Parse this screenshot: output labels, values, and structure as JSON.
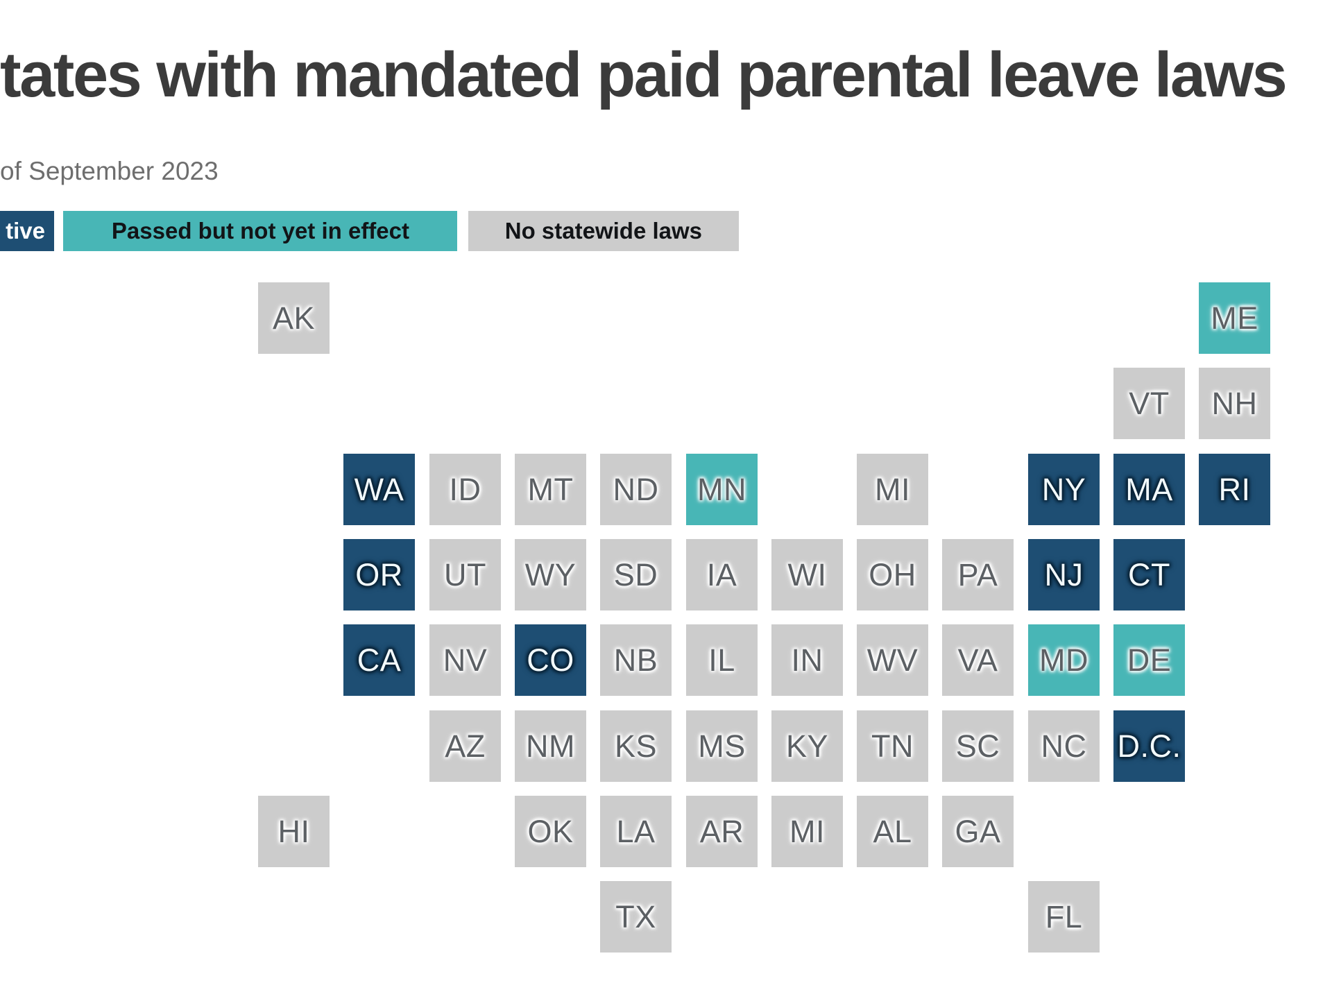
{
  "header": {
    "title": "tates with mandated paid parental leave laws",
    "subtitle": "of September 2023"
  },
  "colors": {
    "background": "#ffffff",
    "title_text": "#3b3b3b",
    "subtitle_text": "#6e6e6e",
    "legend_text_dark": "#121417",
    "legend_text_light": "#ffffff",
    "tile_text_dark": "#5c6064",
    "tile_text_light": "#f2fafd"
  },
  "chart_data": {
    "type": "heatmap",
    "subtype": "us-state-tile-grid-cartogram",
    "title": "tates with mandated paid parental leave laws",
    "subtitle": "of September 2023",
    "legend": [
      {
        "label": "tive",
        "status": "active",
        "color": "#1e4e73"
      },
      {
        "label": "Passed but not yet in effect",
        "status": "passed",
        "color": "#48b6b6"
      },
      {
        "label": "No statewide laws",
        "status": "none",
        "color": "#cccccc"
      }
    ],
    "states": [
      {
        "abbr": "AK",
        "row": 0,
        "col": 0,
        "status": "none"
      },
      {
        "abbr": "ME",
        "row": 0,
        "col": 11,
        "status": "passed"
      },
      {
        "abbr": "VT",
        "row": 1,
        "col": 10,
        "status": "none"
      },
      {
        "abbr": "NH",
        "row": 1,
        "col": 11,
        "status": "none"
      },
      {
        "abbr": "WA",
        "row": 2,
        "col": 1,
        "status": "active"
      },
      {
        "abbr": "ID",
        "row": 2,
        "col": 2,
        "status": "none"
      },
      {
        "abbr": "MT",
        "row": 2,
        "col": 3,
        "status": "none"
      },
      {
        "abbr": "ND",
        "row": 2,
        "col": 4,
        "status": "none"
      },
      {
        "abbr": "MN",
        "row": 2,
        "col": 5,
        "status": "passed"
      },
      {
        "abbr": "MI",
        "row": 2,
        "col": 7,
        "status": "none"
      },
      {
        "abbr": "NY",
        "row": 2,
        "col": 9,
        "status": "active"
      },
      {
        "abbr": "MA",
        "row": 2,
        "col": 10,
        "status": "active"
      },
      {
        "abbr": "RI",
        "row": 2,
        "col": 11,
        "status": "active"
      },
      {
        "abbr": "OR",
        "row": 3,
        "col": 1,
        "status": "active"
      },
      {
        "abbr": "UT",
        "row": 3,
        "col": 2,
        "status": "none"
      },
      {
        "abbr": "WY",
        "row": 3,
        "col": 3,
        "status": "none"
      },
      {
        "abbr": "SD",
        "row": 3,
        "col": 4,
        "status": "none"
      },
      {
        "abbr": "IA",
        "row": 3,
        "col": 5,
        "status": "none"
      },
      {
        "abbr": "WI",
        "row": 3,
        "col": 6,
        "status": "none"
      },
      {
        "abbr": "OH",
        "row": 3,
        "col": 7,
        "status": "none"
      },
      {
        "abbr": "PA",
        "row": 3,
        "col": 8,
        "status": "none"
      },
      {
        "abbr": "NJ",
        "row": 3,
        "col": 9,
        "status": "active"
      },
      {
        "abbr": "CT",
        "row": 3,
        "col": 10,
        "status": "active"
      },
      {
        "abbr": "CA",
        "row": 4,
        "col": 1,
        "status": "active"
      },
      {
        "abbr": "NV",
        "row": 4,
        "col": 2,
        "status": "none"
      },
      {
        "abbr": "CO",
        "row": 4,
        "col": 3,
        "status": "active"
      },
      {
        "abbr": "NB",
        "row": 4,
        "col": 4,
        "status": "none"
      },
      {
        "abbr": "IL",
        "row": 4,
        "col": 5,
        "status": "none"
      },
      {
        "abbr": "IN",
        "row": 4,
        "col": 6,
        "status": "none"
      },
      {
        "abbr": "WV",
        "row": 4,
        "col": 7,
        "status": "none"
      },
      {
        "abbr": "VA",
        "row": 4,
        "col": 8,
        "status": "none"
      },
      {
        "abbr": "MD",
        "row": 4,
        "col": 9,
        "status": "passed"
      },
      {
        "abbr": "DE",
        "row": 4,
        "col": 10,
        "status": "passed"
      },
      {
        "abbr": "AZ",
        "row": 5,
        "col": 2,
        "status": "none"
      },
      {
        "abbr": "NM",
        "row": 5,
        "col": 3,
        "status": "none"
      },
      {
        "abbr": "KS",
        "row": 5,
        "col": 4,
        "status": "none"
      },
      {
        "abbr": "MS",
        "row": 5,
        "col": 5,
        "status": "none"
      },
      {
        "abbr": "KY",
        "row": 5,
        "col": 6,
        "status": "none"
      },
      {
        "abbr": "TN",
        "row": 5,
        "col": 7,
        "status": "none"
      },
      {
        "abbr": "SC",
        "row": 5,
        "col": 8,
        "status": "none"
      },
      {
        "abbr": "NC",
        "row": 5,
        "col": 9,
        "status": "none"
      },
      {
        "abbr": "D.C.",
        "row": 5,
        "col": 10,
        "status": "active"
      },
      {
        "abbr": "HI",
        "row": 6,
        "col": 0,
        "status": "none"
      },
      {
        "abbr": "OK",
        "row": 6,
        "col": 3,
        "status": "none"
      },
      {
        "abbr": "LA",
        "row": 6,
        "col": 4,
        "status": "none"
      },
      {
        "abbr": "AR",
        "row": 6,
        "col": 5,
        "status": "none"
      },
      {
        "abbr": "MI",
        "row": 6,
        "col": 6,
        "status": "none"
      },
      {
        "abbr": "AL",
        "row": 6,
        "col": 7,
        "status": "none"
      },
      {
        "abbr": "GA",
        "row": 6,
        "col": 8,
        "status": "none"
      },
      {
        "abbr": "TX",
        "row": 7,
        "col": 4,
        "status": "none"
      },
      {
        "abbr": "FL",
        "row": 7,
        "col": 9,
        "status": "none"
      }
    ]
  }
}
